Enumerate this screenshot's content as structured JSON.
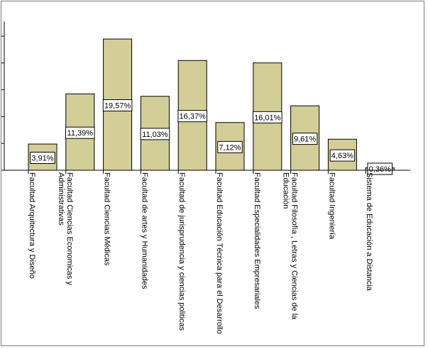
{
  "chart_data": {
    "type": "bar",
    "categories": [
      [
        "Facultad Arquitectura y Diseño"
      ],
      [
        "Facultad Ciencias Economicas y",
        "Administrativas"
      ],
      [
        "Facultad Ciencias Médicas"
      ],
      [
        "Facultad de artes y Humanidades"
      ],
      [
        "Facultad de jurisprudencia y ciencias politicas"
      ],
      [
        "Facultad Educación Técnica para el Desarrollo"
      ],
      [
        "Facultad Especialidades Empresariales"
      ],
      [
        "Facultad Filosofía , Letras y Ciencias de la",
        "Educación"
      ],
      [
        "Facultad Ingeniería"
      ],
      [
        "Sistema de Educación a Distancia"
      ]
    ],
    "values": [
      3.91,
      11.39,
      19.57,
      11.03,
      16.37,
      7.12,
      16.01,
      9.61,
      4.63,
      0.36
    ],
    "data_labels": [
      "3,91%",
      "11,39%",
      "19,57%",
      "11,03%",
      "16,37%",
      "7,12%",
      "16,01%",
      "9,61%",
      "4,63%",
      "0,36%"
    ],
    "ylim": [
      0,
      22.2
    ],
    "grid": false,
    "colors": {
      "bar_fill": "#d3ce98",
      "bar_stroke": "#000000",
      "axis": "#000000",
      "frame": "#7a7a7a",
      "background": "#ffffff"
    }
  }
}
